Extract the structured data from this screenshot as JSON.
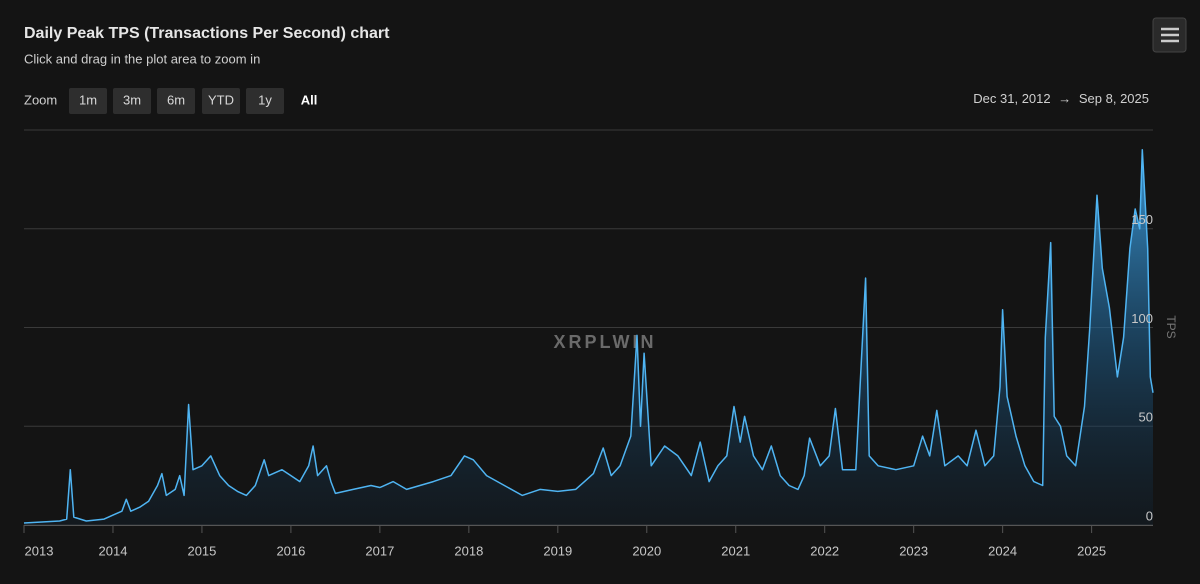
{
  "chart_data": {
    "type": "area",
    "title": "Daily Peak TPS (Transactions Per Second) chart",
    "subtitle": "Click and drag in the plot area to zoom in",
    "zoom_label": "Zoom",
    "zoom_buttons": [
      "1m",
      "3m",
      "6m",
      "YTD",
      "1y",
      "All"
    ],
    "zoom_selected": "All",
    "range_from": "Dec 31, 2012",
    "range_separator": "→",
    "range_to": "Sep 8, 2025",
    "watermark": "XRPLWIN",
    "y_axis_label": "TPS",
    "color": "#4fb4f2",
    "grid": true,
    "xlim": [
      2013.0,
      2025.69
    ],
    "xticks": [
      2013,
      2014,
      2015,
      2016,
      2017,
      2018,
      2019,
      2020,
      2021,
      2022,
      2023,
      2024,
      2025
    ],
    "ylim": [
      0,
      200
    ],
    "yticks": [
      0,
      50,
      100,
      150
    ],
    "x": [
      2013.0,
      2013.2,
      2013.4,
      2013.48,
      2013.52,
      2013.56,
      2013.7,
      2013.9,
      2014.0,
      2014.1,
      2014.15,
      2014.2,
      2014.3,
      2014.4,
      2014.5,
      2014.55,
      2014.6,
      2014.7,
      2014.75,
      2014.8,
      2014.85,
      2014.9,
      2015.0,
      2015.1,
      2015.2,
      2015.3,
      2015.4,
      2015.5,
      2015.6,
      2015.7,
      2015.75,
      2015.9,
      2016.0,
      2016.1,
      2016.2,
      2016.25,
      2016.3,
      2016.4,
      2016.45,
      2016.5,
      2016.7,
      2016.9,
      2017.0,
      2017.15,
      2017.3,
      2017.45,
      2017.6,
      2017.8,
      2017.95,
      2018.05,
      2018.2,
      2018.4,
      2018.6,
      2018.8,
      2019.0,
      2019.2,
      2019.3,
      2019.4,
      2019.51,
      2019.6,
      2019.7,
      2019.82,
      2019.89,
      2019.93,
      2019.97,
      2020.05,
      2020.2,
      2020.35,
      2020.5,
      2020.6,
      2020.7,
      2020.8,
      2020.9,
      2020.98,
      2021.05,
      2021.1,
      2021.2,
      2021.3,
      2021.4,
      2021.5,
      2021.6,
      2021.7,
      2021.77,
      2021.83,
      2021.95,
      2022.05,
      2022.12,
      2022.2,
      2022.35,
      2022.46,
      2022.5,
      2022.6,
      2022.8,
      2023.0,
      2023.1,
      2023.18,
      2023.26,
      2023.35,
      2023.5,
      2023.6,
      2023.7,
      2023.8,
      2023.9,
      2023.97,
      2024.0,
      2024.05,
      2024.15,
      2024.25,
      2024.35,
      2024.45,
      2024.48,
      2024.54,
      2024.58,
      2024.65,
      2024.72,
      2024.82,
      2024.92,
      2024.98,
      2025.06,
      2025.12,
      2025.2,
      2025.29,
      2025.36,
      2025.43,
      2025.49,
      2025.54,
      2025.57,
      2025.63,
      2025.66,
      2025.69
    ],
    "values": [
      1,
      1.5,
      2,
      3,
      28,
      4,
      2,
      3,
      5,
      7,
      13,
      7,
      9,
      12,
      20,
      26,
      15,
      18,
      25,
      15,
      61,
      28,
      30,
      35,
      25,
      20,
      17,
      15,
      20,
      33,
      25,
      28,
      25,
      22,
      30,
      40,
      25,
      30,
      22,
      16,
      18,
      20,
      19,
      22,
      18,
      20,
      22,
      25,
      35,
      33,
      25,
      20,
      15,
      18,
      17,
      18,
      22,
      26,
      39,
      25,
      30,
      45,
      96,
      50,
      87,
      30,
      40,
      35,
      25,
      42,
      22,
      30,
      35,
      60,
      42,
      55,
      35,
      28,
      40,
      25,
      20,
      18,
      25,
      44,
      30,
      35,
      59,
      28,
      28,
      125,
      35,
      30,
      28,
      30,
      45,
      35,
      58,
      30,
      35,
      30,
      48,
      30,
      35,
      70,
      109,
      65,
      45,
      30,
      22,
      20,
      95,
      143,
      55,
      50,
      35,
      30,
      60,
      100,
      167,
      130,
      110,
      75,
      95,
      140,
      160,
      150,
      190,
      140,
      75,
      67
    ]
  }
}
